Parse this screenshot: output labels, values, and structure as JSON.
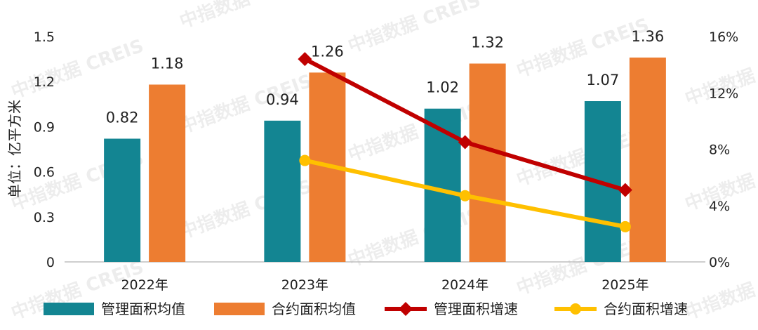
{
  "watermark": "中指数据 CREIS",
  "chart_data": {
    "type": "bar",
    "categories": [
      "2022年",
      "2023年",
      "2024年",
      "2025年"
    ],
    "ylabel": "单位：亿平方米",
    "ylim": [
      0,
      1.5
    ],
    "yticks": [
      "0",
      "0.3",
      "0.6",
      "0.9",
      "1.2",
      "1.5"
    ],
    "y2lim": [
      0,
      0.16
    ],
    "y2ticks": [
      "0%",
      "4%",
      "8%",
      "12%",
      "16%"
    ],
    "series": [
      {
        "name": "管理面积均值",
        "kind": "bar",
        "axis": "left",
        "color": "#138592",
        "values": [
          0.82,
          0.94,
          1.02,
          1.07
        ],
        "labels": [
          "0.82",
          "0.94",
          "1.02",
          "1.07"
        ]
      },
      {
        "name": "合约面积均值",
        "kind": "bar",
        "axis": "left",
        "color": "#ED7D31",
        "values": [
          1.18,
          1.26,
          1.32,
          1.36
        ],
        "labels": [
          "1.18",
          "1.26",
          "1.32",
          "1.36"
        ]
      },
      {
        "name": "管理面积增速",
        "kind": "line",
        "axis": "right",
        "color": "#C00000",
        "marker": "diamond",
        "values": [
          null,
          0.144,
          0.085,
          0.051
        ]
      },
      {
        "name": "合约面积增速",
        "kind": "line",
        "axis": "right",
        "color": "#FFC000",
        "marker": "circle",
        "values": [
          null,
          0.072,
          0.047,
          0.025
        ]
      }
    ],
    "legend_position": "bottom",
    "grid": false
  }
}
